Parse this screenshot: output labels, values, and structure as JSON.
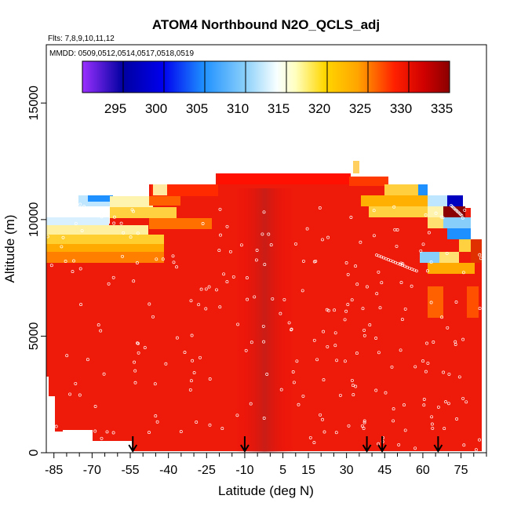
{
  "chart_data": {
    "type": "heatmap",
    "title": "ATOM4 Northbound N2O_QCLS_adj",
    "subtitle_flights": "Flts: 7,8,9,10,11,12",
    "subtitle_dates": "MMDD: 0509,0512,0514,0517,0518,0519",
    "xlabel": "Latitude (deg N)",
    "ylabel": "Altitude (m)",
    "xlim": [
      -88,
      85
    ],
    "ylim": [
      0,
      17500
    ],
    "x_ticks": [
      -85,
      -70,
      -55,
      -40,
      -25,
      -10,
      5,
      15,
      30,
      45,
      60,
      75
    ],
    "y_ticks": [
      0,
      5000,
      10000,
      15000
    ],
    "colorbar": {
      "ticks": [
        295,
        300,
        305,
        310,
        315,
        320,
        325,
        330,
        335
      ],
      "range": [
        290,
        335
      ],
      "colors": [
        "#9b30ff",
        "#00008b",
        "#0000cd",
        "#1e90ff",
        "#87cefa",
        "#ffffff",
        "#ffffe0",
        "#ffd700",
        "#ffa500",
        "#ff4500",
        "#ff0000",
        "#b22222",
        "#8b0000"
      ]
    },
    "arrows_latitude": [
      -54,
      -10,
      38,
      44,
      66
    ],
    "grid": false,
    "description_hidden": ""
  }
}
